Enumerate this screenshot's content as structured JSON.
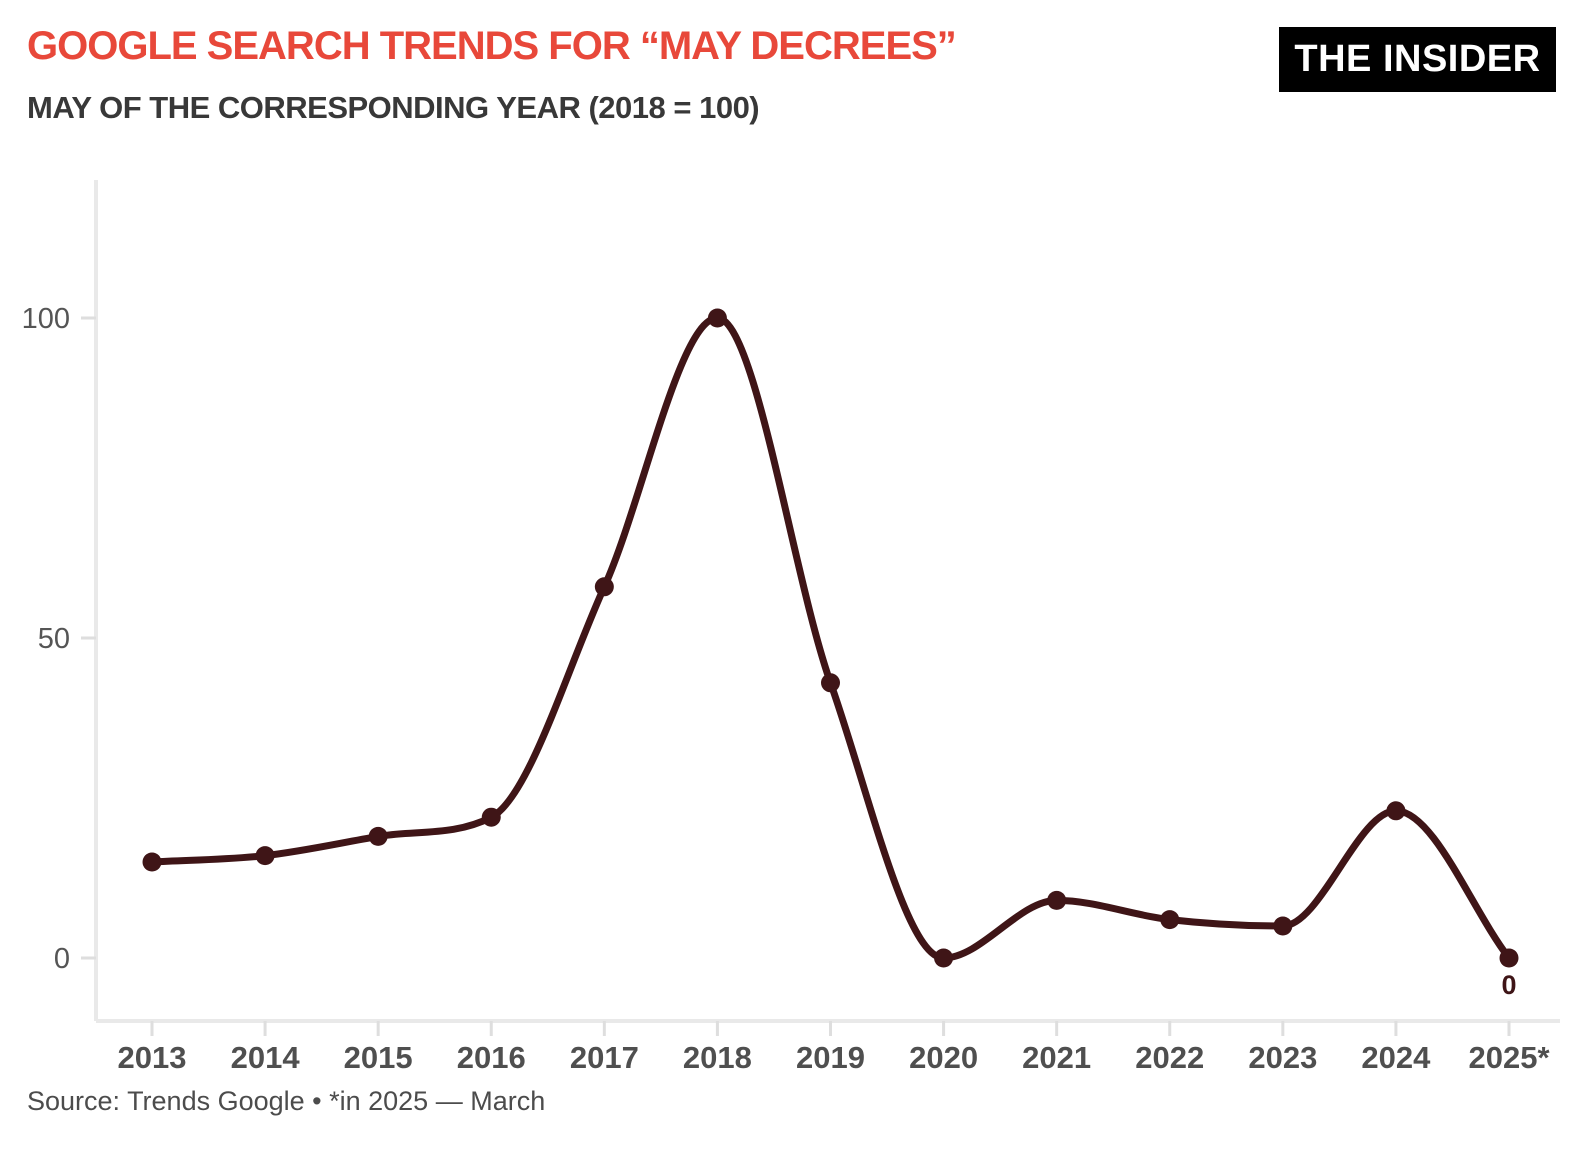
{
  "header": {
    "title": "GOOGLE SEARCH TRENDS FOR “MAY DECREES”",
    "subtitle": "MAY OF THE CORRESPONDING YEAR (2018 = 100)",
    "logo": "THE INSIDER"
  },
  "footer": {
    "source": "Source: Trends Google • *in 2025 — March"
  },
  "colors": {
    "title_red": "#e8483a",
    "subtitle_gray": "#383838",
    "line_maroon": "#3f1517",
    "axis_gray": "#e9e9e9",
    "tick_gray": "#dedede",
    "x_label_gray": "#4f4f4f",
    "y_label_gray": "#555555",
    "logo_bg": "#000000",
    "logo_text": "#ffffff"
  },
  "chart_data": {
    "type": "line",
    "title": "GOOGLE SEARCH TRENDS FOR “MAY DECREES”",
    "subtitle": "MAY OF THE CORRESPONDING YEAR (2018 = 100)",
    "categories": [
      "2013",
      "2014",
      "2015",
      "2016",
      "2017",
      "2018",
      "2019",
      "2020",
      "2021",
      "2022",
      "2023",
      "2024",
      "2025*"
    ],
    "values": [
      15,
      16,
      19,
      22,
      58,
      100,
      43,
      0,
      9,
      6,
      5,
      23,
      0
    ],
    "xlabel": "",
    "ylabel": "",
    "yticks": [
      0,
      50,
      100
    ],
    "ylim": [
      0,
      120
    ],
    "grid": false,
    "legend": "none",
    "smooth": true,
    "line_color": "#3f1517",
    "point_color": "#3f1517",
    "annotation": {
      "category": "2025*",
      "text": "0"
    }
  }
}
